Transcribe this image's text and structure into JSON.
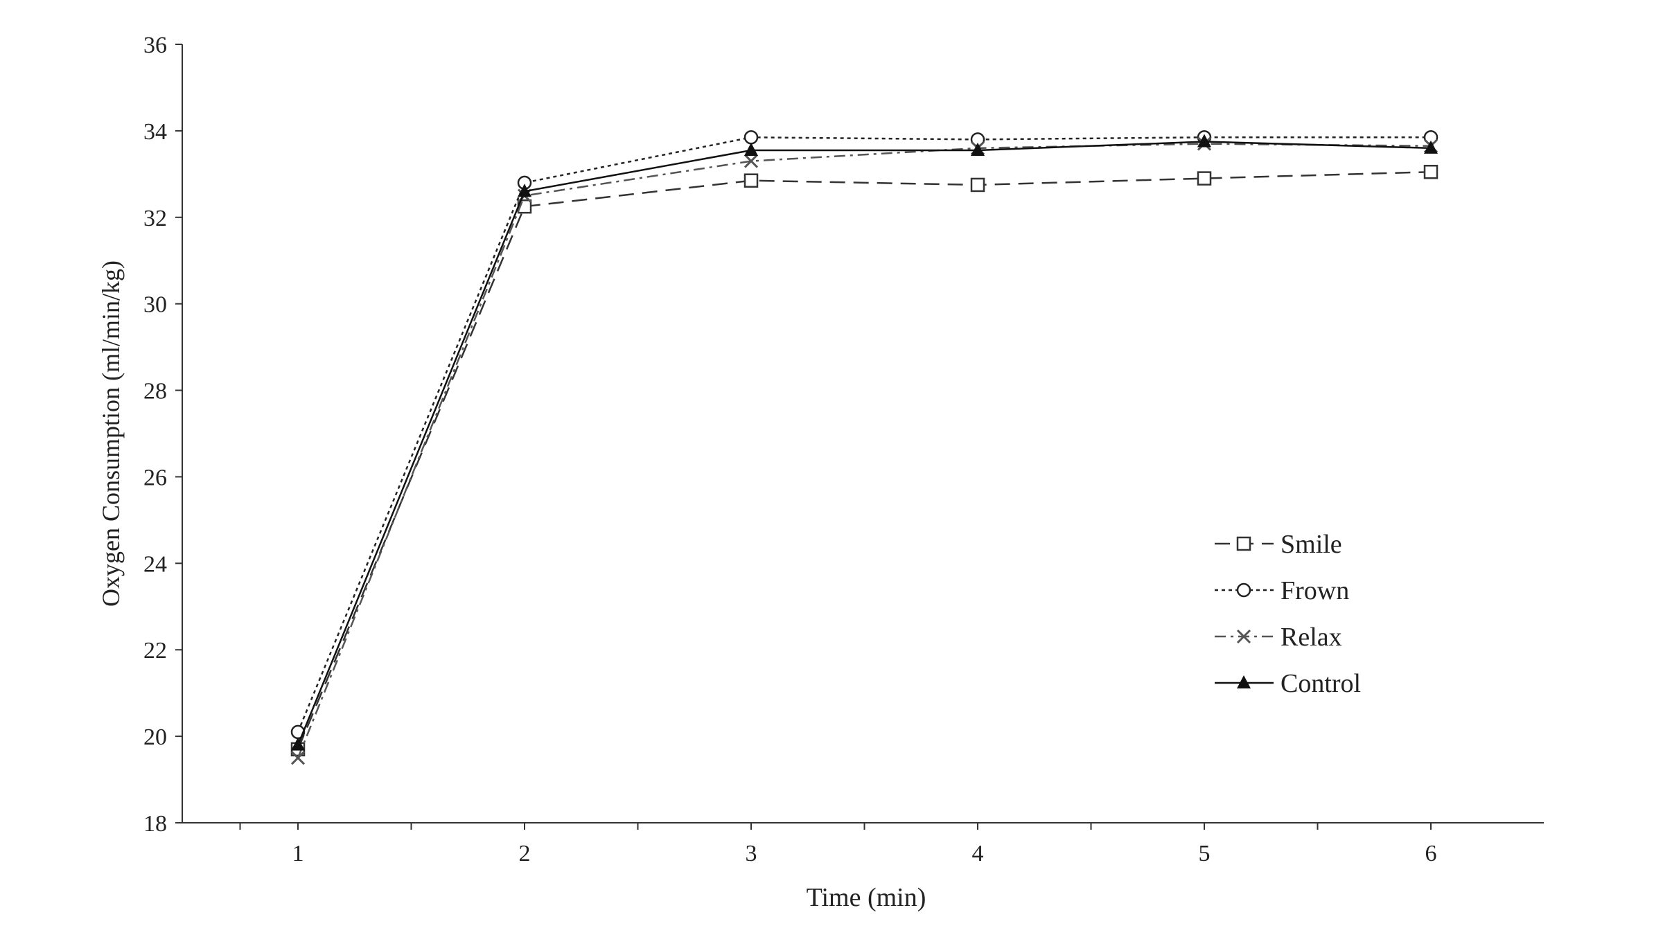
{
  "chart_data": {
    "type": "line",
    "title": "",
    "xlabel": "Time (min)",
    "ylabel": "Oxygen Consumption (ml/min/kg)",
    "x": [
      1,
      2,
      3,
      4,
      5,
      6
    ],
    "xticks": [
      "1",
      "2",
      "3",
      "4",
      "5",
      "6"
    ],
    "xlim": [
      0.5,
      6.5
    ],
    "ylim": [
      18,
      36
    ],
    "yticks": [
      "18",
      "20",
      "22",
      "24",
      "26",
      "28",
      "30",
      "32",
      "34",
      "36"
    ],
    "grid": false,
    "legend_position": "right",
    "series": [
      {
        "name": "Smile",
        "marker": "square-open",
        "dash": "long-dash",
        "color": "#333333",
        "values": [
          19.7,
          32.25,
          32.85,
          32.75,
          32.9,
          33.05
        ]
      },
      {
        "name": "Frown",
        "marker": "circle-open",
        "dash": "dotted",
        "color": "#222222",
        "values": [
          20.1,
          32.8,
          33.85,
          33.8,
          33.85,
          33.85
        ]
      },
      {
        "name": "Relax",
        "marker": "x",
        "dash": "dash-dot",
        "color": "#555555",
        "values": [
          19.5,
          32.5,
          33.3,
          33.6,
          33.7,
          33.65
        ]
      },
      {
        "name": "Control",
        "marker": "triangle-filled",
        "dash": "solid",
        "color": "#111111",
        "values": [
          19.8,
          32.6,
          33.55,
          33.55,
          33.75,
          33.6
        ]
      }
    ]
  }
}
